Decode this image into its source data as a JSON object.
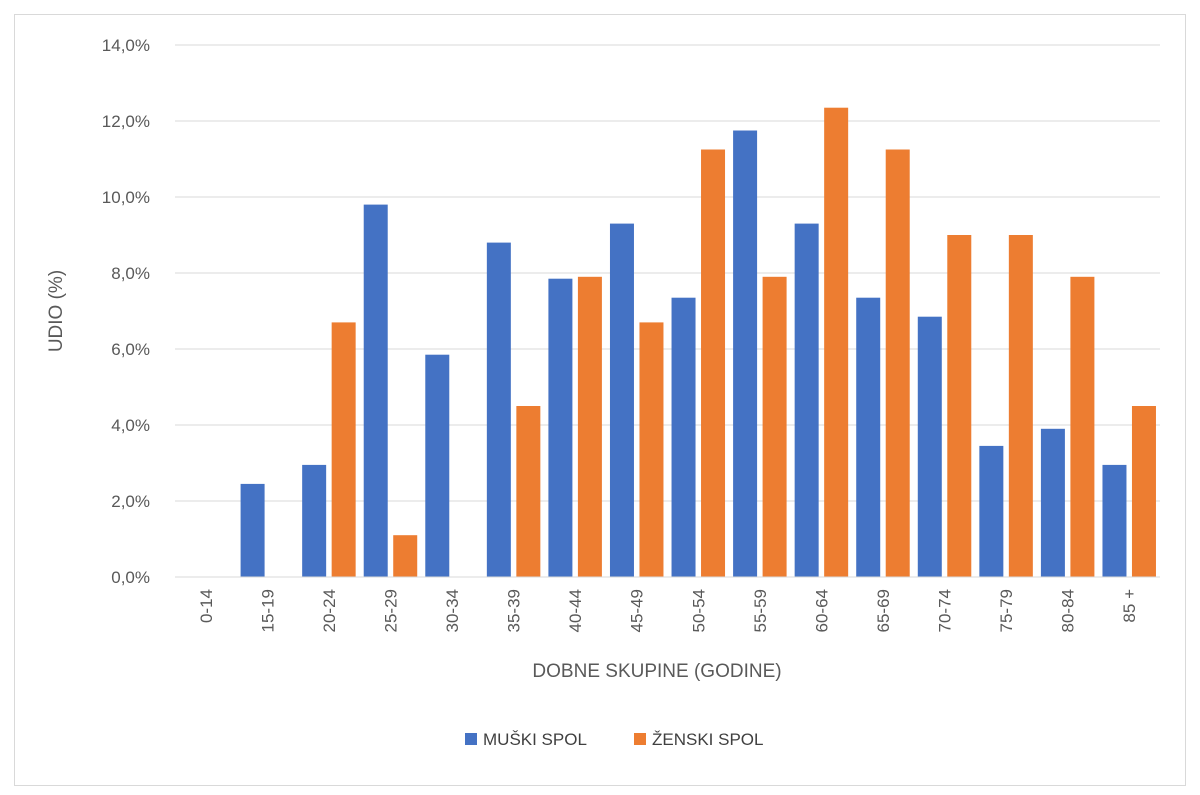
{
  "chart_data": {
    "type": "bar",
    "xlabel": "DOBNE SKUPINE (GODINE)",
    "ylabel": "UDIO (%)",
    "ylim": [
      0,
      14
    ],
    "ytick_step": 2,
    "ytick_labels": [
      "0,0%",
      "2,0%",
      "4,0%",
      "6,0%",
      "8,0%",
      "10,0%",
      "12,0%",
      "14,0%"
    ],
    "grid": true,
    "legend_position": "bottom",
    "categories": [
      "0-14",
      "15-19",
      "20-24",
      "25-29",
      "30-34",
      "35-39",
      "40-44",
      "45-49",
      "50-54",
      "55-59",
      "60-64",
      "65-69",
      "70-74",
      "75-79",
      "80-84",
      "85 +"
    ],
    "series": [
      {
        "name": "MUŠKI SPOL",
        "color": "#4472c4",
        "values": [
          0.0,
          2.45,
          2.95,
          9.8,
          5.85,
          8.8,
          7.85,
          9.3,
          7.35,
          11.75,
          9.3,
          7.35,
          6.85,
          3.45,
          3.9,
          2.95
        ]
      },
      {
        "name": "ŽENSKI SPOL",
        "color": "#ed7d31",
        "values": [
          0.0,
          0.0,
          6.7,
          1.1,
          0.0,
          4.5,
          7.9,
          6.7,
          11.25,
          7.9,
          12.35,
          11.25,
          9.0,
          9.0,
          7.9,
          4.5
        ]
      }
    ]
  }
}
